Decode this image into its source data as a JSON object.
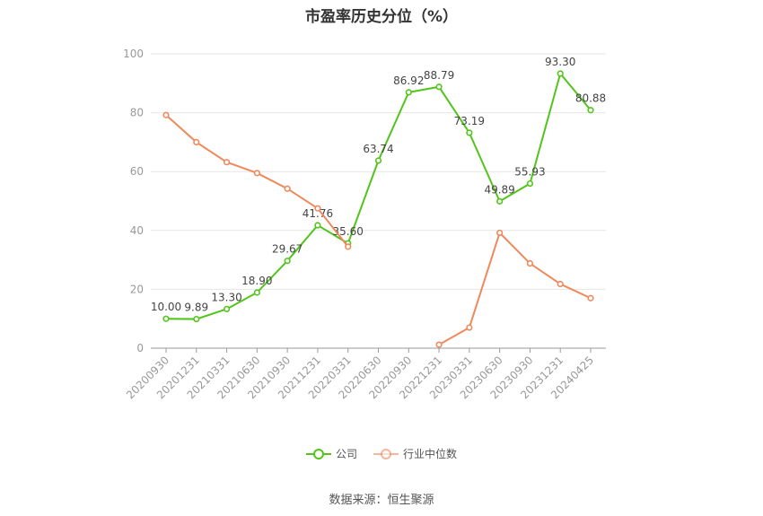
{
  "colors": {
    "company": "#52c41a",
    "industry": "#f0885c",
    "grid": "#e6e6e6",
    "axis": "#999999"
  },
  "chart_data": {
    "type": "line",
    "title": "市盈率历史分位（%）",
    "ylim": [
      0,
      100
    ],
    "yticks": [
      0,
      20,
      40,
      60,
      80,
      100
    ],
    "categories": [
      "20200930",
      "20201231",
      "20210331",
      "20210630",
      "20210930",
      "20211231",
      "20220331",
      "20220630",
      "20220930",
      "20221231",
      "20230331",
      "20230630",
      "20230930",
      "20231231",
      "20240425"
    ],
    "series": [
      {
        "name": "公司",
        "values": [
          10.0,
          9.89,
          13.3,
          18.9,
          29.67,
          41.76,
          35.6,
          63.74,
          86.92,
          88.79,
          73.19,
          49.89,
          55.93,
          93.3,
          80.88
        ],
        "labels": true
      },
      {
        "name": "行业中位数",
        "values": [
          79.2,
          70.0,
          63.2,
          59.5,
          54.2,
          47.5,
          34.5,
          null,
          null,
          1.2,
          7.0,
          39.2,
          28.8,
          21.8,
          17.0
        ],
        "labels": false
      }
    ],
    "grid": true,
    "legend": "bottom"
  },
  "source_text": "数据来源：恒生聚源"
}
